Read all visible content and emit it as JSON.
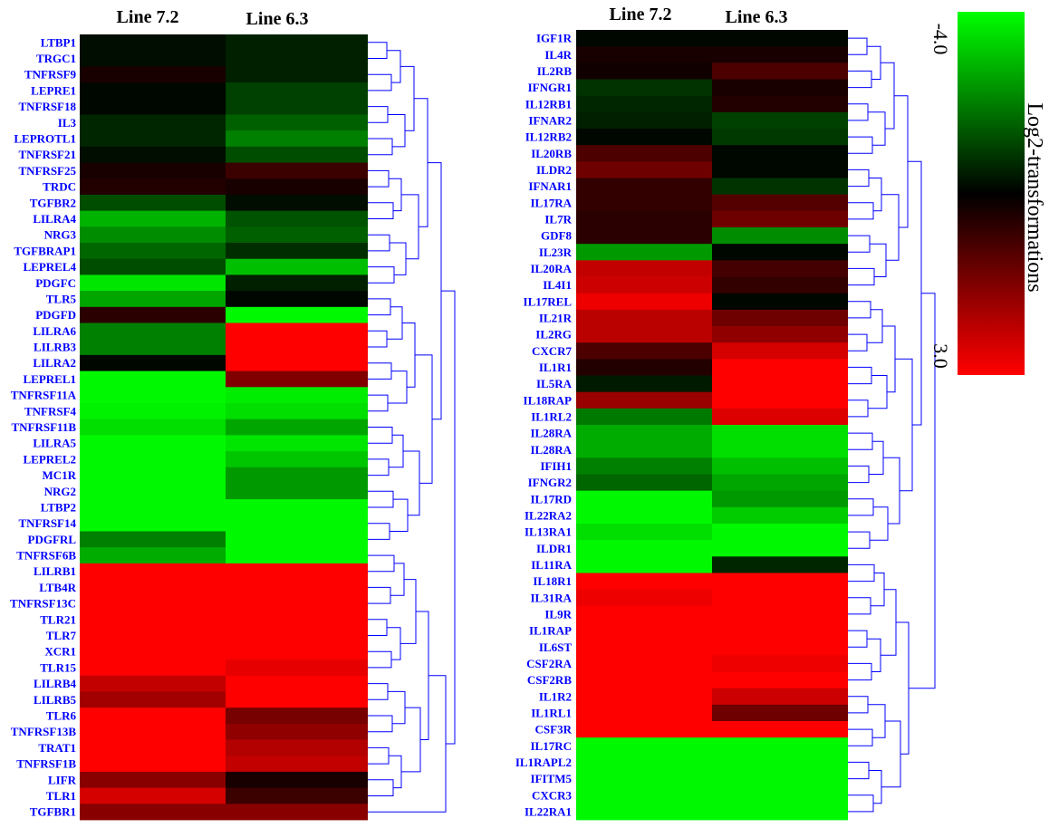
{
  "chart_data": [
    {
      "type": "heatmap",
      "columns": [
        "Line 7.2",
        "Line 6.3"
      ],
      "rows": [
        {
          "gene": "LTBP1",
          "values": [
            -0.2,
            -0.5
          ]
        },
        {
          "gene": "TRGC1",
          "values": [
            -0.2,
            -0.5
          ]
        },
        {
          "gene": "TNFRSF9",
          "values": [
            0.3,
            -0.5
          ]
        },
        {
          "gene": "LEPRE1",
          "values": [
            -0.1,
            -1.0
          ]
        },
        {
          "gene": "TNFRSF18",
          "values": [
            -0.1,
            -1.0
          ]
        },
        {
          "gene": "IL3",
          "values": [
            -0.6,
            -1.5
          ]
        },
        {
          "gene": "LEPROTL1",
          "values": [
            -0.6,
            -2.0
          ]
        },
        {
          "gene": "TNFRSF21",
          "values": [
            -0.2,
            -1.2
          ]
        },
        {
          "gene": "TNFRSF25",
          "values": [
            0.3,
            0.7
          ]
        },
        {
          "gene": "TRDC",
          "values": [
            0.4,
            0.3
          ]
        },
        {
          "gene": "TGFBR2",
          "values": [
            -1.2,
            -0.2
          ]
        },
        {
          "gene": "LILRA4",
          "values": [
            -2.8,
            -1.3
          ]
        },
        {
          "gene": "NRG3",
          "values": [
            -2.2,
            -1.5
          ]
        },
        {
          "gene": "TGFBRAP1",
          "values": [
            -1.6,
            -0.7
          ]
        },
        {
          "gene": "LEPREL4",
          "values": [
            -1.2,
            -3.0
          ]
        },
        {
          "gene": "PDGFC",
          "values": [
            -3.6,
            -0.5
          ]
        },
        {
          "gene": "TLR5",
          "values": [
            -2.6,
            -0.1
          ]
        },
        {
          "gene": "PDGFD",
          "values": [
            0.5,
            -3.9
          ]
        },
        {
          "gene": "LILRA6",
          "values": [
            -2.0,
            3.0
          ]
        },
        {
          "gene": "LILRB3",
          "values": [
            -2.0,
            3.0
          ]
        },
        {
          "gene": "LILRA2",
          "values": [
            -0.1,
            3.0
          ]
        },
        {
          "gene": "LEPREL1",
          "values": [
            -3.9,
            1.5
          ]
        },
        {
          "gene": "TNFRSF11A",
          "values": [
            -3.9,
            -3.7
          ]
        },
        {
          "gene": "TNFRSF4",
          "values": [
            -3.8,
            -3.5
          ]
        },
        {
          "gene": "TNFRSF11B",
          "values": [
            -3.5,
            -2.6
          ]
        },
        {
          "gene": "LILRA5",
          "values": [
            -3.9,
            -3.6
          ]
        },
        {
          "gene": "LEPREL2",
          "values": [
            -3.9,
            -3.1
          ]
        },
        {
          "gene": "MC1R",
          "values": [
            -3.9,
            -2.4
          ]
        },
        {
          "gene": "NRG2",
          "values": [
            -3.9,
            -2.4
          ]
        },
        {
          "gene": "LTBP2",
          "values": [
            -3.9,
            -3.9
          ]
        },
        {
          "gene": "TNFRSF14",
          "values": [
            -3.9,
            -3.9
          ]
        },
        {
          "gene": "PDGFRL",
          "values": [
            -2.0,
            -3.9
          ]
        },
        {
          "gene": "TNFRSF6B",
          "values": [
            -2.7,
            -3.9
          ]
        },
        {
          "gene": "LILRB1",
          "values": [
            3.0,
            3.0
          ]
        },
        {
          "gene": "LTB4R",
          "values": [
            3.0,
            3.0
          ]
        },
        {
          "gene": "TNFRSF13C",
          "values": [
            3.0,
            3.0
          ]
        },
        {
          "gene": "TLR21",
          "values": [
            3.0,
            3.0
          ]
        },
        {
          "gene": "TLR7",
          "values": [
            3.0,
            3.0
          ]
        },
        {
          "gene": "XCR1",
          "values": [
            3.0,
            3.0
          ]
        },
        {
          "gene": "TLR15",
          "values": [
            3.0,
            2.7
          ]
        },
        {
          "gene": "LILRB4",
          "values": [
            2.3,
            3.0
          ]
        },
        {
          "gene": "LILRB5",
          "values": [
            1.9,
            3.0
          ]
        },
        {
          "gene": "TLR6",
          "values": [
            3.0,
            1.4
          ]
        },
        {
          "gene": "TNFRSF13B",
          "values": [
            3.0,
            1.7
          ]
        },
        {
          "gene": "TRAT1",
          "values": [
            3.0,
            2.1
          ]
        },
        {
          "gene": "TNFRSF1B",
          "values": [
            3.0,
            2.3
          ]
        },
        {
          "gene": "LIFR",
          "values": [
            1.6,
            0.3
          ]
        },
        {
          "gene": "TLR1",
          "values": [
            2.5,
            0.7
          ]
        },
        {
          "gene": "TGFBR1",
          "values": [
            1.6,
            1.6
          ]
        }
      ]
    },
    {
      "type": "heatmap",
      "columns": [
        "Line 7.2",
        "Line 6.3"
      ],
      "rows": [
        {
          "gene": "IGF1R",
          "values": [
            -0.1,
            -0.1
          ]
        },
        {
          "gene": "IL4R",
          "values": [
            0.3,
            0.3
          ]
        },
        {
          "gene": "IL2RB",
          "values": [
            0.2,
            0.9
          ]
        },
        {
          "gene": "IFNGR1",
          "values": [
            -0.8,
            0.3
          ]
        },
        {
          "gene": "IL12RB1",
          "values": [
            -0.6,
            0.4
          ]
        },
        {
          "gene": "IFNAR2",
          "values": [
            -0.5,
            -1.0
          ]
        },
        {
          "gene": "IL12RB2",
          "values": [
            -0.1,
            -0.9
          ]
        },
        {
          "gene": "IL20RB",
          "values": [
            0.9,
            -0.1
          ]
        },
        {
          "gene": "ILDR2",
          "values": [
            1.3,
            -0.1
          ]
        },
        {
          "gene": "IFNAR1",
          "values": [
            0.6,
            -0.8
          ]
        },
        {
          "gene": "IL17RA",
          "values": [
            0.6,
            1.0
          ]
        },
        {
          "gene": "IL7R",
          "values": [
            0.5,
            1.3
          ]
        },
        {
          "gene": "GDF8",
          "values": [
            0.5,
            -2.2
          ]
        },
        {
          "gene": "IL23R",
          "values": [
            -2.4,
            -0.1
          ]
        },
        {
          "gene": "IL20RA",
          "values": [
            2.3,
            0.8
          ]
        },
        {
          "gene": "IL4I1",
          "values": [
            2.4,
            0.6
          ]
        },
        {
          "gene": "IL17REL",
          "values": [
            2.8,
            -0.1
          ]
        },
        {
          "gene": "IL21R",
          "values": [
            2.2,
            1.3
          ]
        },
        {
          "gene": "IL2RG",
          "values": [
            2.2,
            1.7
          ]
        },
        {
          "gene": "CXCR7",
          "values": [
            0.9,
            2.5
          ]
        },
        {
          "gene": "IL1R1",
          "values": [
            0.4,
            3.0
          ]
        },
        {
          "gene": "IL5RA",
          "values": [
            -0.4,
            3.0
          ]
        },
        {
          "gene": "IL18RAP",
          "values": [
            1.8,
            3.0
          ]
        },
        {
          "gene": "IL1RL2",
          "values": [
            -1.9,
            2.6
          ]
        },
        {
          "gene": "IL28RA",
          "values": [
            -2.7,
            -3.5
          ]
        },
        {
          "gene": "IL28RA",
          "values": [
            -2.7,
            -3.5
          ]
        },
        {
          "gene": "IFIH1",
          "values": [
            -2.0,
            -3.0
          ]
        },
        {
          "gene": "IFNGR2",
          "values": [
            -1.6,
            -2.6
          ]
        },
        {
          "gene": "IL17RD",
          "values": [
            -3.9,
            -2.4
          ]
        },
        {
          "gene": "IL22RA2",
          "values": [
            -3.9,
            -3.2
          ]
        },
        {
          "gene": "IL13RA1",
          "values": [
            -3.5,
            -3.9
          ]
        },
        {
          "gene": "ILDR1",
          "values": [
            -3.9,
            -3.9
          ]
        },
        {
          "gene": "IL11RA",
          "values": [
            -3.9,
            -0.6
          ]
        },
        {
          "gene": "IL18R1",
          "values": [
            3.0,
            3.0
          ]
        },
        {
          "gene": "IL31RA",
          "values": [
            2.8,
            3.0
          ]
        },
        {
          "gene": "IL9R",
          "values": [
            3.0,
            3.0
          ]
        },
        {
          "gene": "IL1RAP",
          "values": [
            3.0,
            3.0
          ]
        },
        {
          "gene": "IL6ST",
          "values": [
            3.0,
            3.0
          ]
        },
        {
          "gene": "CSF2RA",
          "values": [
            3.0,
            2.8
          ]
        },
        {
          "gene": "CSF2RB",
          "values": [
            3.0,
            3.0
          ]
        },
        {
          "gene": "IL1R2",
          "values": [
            3.0,
            2.4
          ]
        },
        {
          "gene": "IL1RL1",
          "values": [
            3.0,
            1.3
          ]
        },
        {
          "gene": "CSF3R",
          "values": [
            3.0,
            3.0
          ]
        },
        {
          "gene": "IL17RC",
          "values": [
            -3.9,
            -3.9
          ]
        },
        {
          "gene": "IL1RAPL2",
          "values": [
            -3.9,
            -3.9
          ]
        },
        {
          "gene": "IFITM5",
          "values": [
            -3.9,
            -3.9
          ]
        },
        {
          "gene": "CXCR3",
          "values": [
            -3.9,
            -3.9
          ]
        },
        {
          "gene": "IL22RA1",
          "values": [
            -3.9,
            -3.9
          ]
        }
      ]
    }
  ],
  "scale": {
    "title": "Log2-transformations",
    "top_label": "-4.0",
    "bottom_label": "3.0",
    "min": -4.0,
    "max": 3.0,
    "colors": {
      "low": "#00ff00",
      "mid": "#000000",
      "high": "#ff0000"
    }
  },
  "dendro_color": "#0000ff",
  "gene_label_color": "#0000ff"
}
